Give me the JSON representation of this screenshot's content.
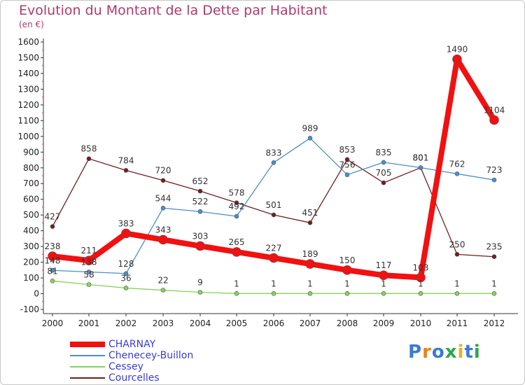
{
  "header": {
    "title": "Evolution du Montant de la Dette par Habitant",
    "subtitle": "(en €)"
  },
  "logo": {
    "letters": [
      "P",
      "r",
      "o",
      "x",
      "i",
      "t",
      "i"
    ],
    "colors": [
      "#3a7bd5",
      "#e8831a",
      "#3a7bd5",
      "#2aa84a",
      "#e8b21a",
      "#3a7bd5",
      "#2aa84a"
    ]
  },
  "chart_data": {
    "type": "line",
    "x": [
      2000,
      2001,
      2002,
      2003,
      2004,
      2005,
      2006,
      2007,
      2008,
      2009,
      2010,
      2011,
      2012
    ],
    "xticklabels": [
      "2000",
      "2001",
      "2002",
      "2003",
      "2004",
      "2005",
      "2006",
      "2007",
      "2008",
      "2009",
      "2010",
      "2011",
      "2012"
    ],
    "ylim": [
      -100,
      1600
    ],
    "yticks": [
      -100,
      0,
      100,
      200,
      300,
      400,
      500,
      600,
      700,
      800,
      900,
      1000,
      1100,
      1200,
      1300,
      1400,
      1500,
      1600
    ],
    "yticklabels": [
      "-100",
      "0",
      "100",
      "200",
      "300",
      "400",
      "500",
      "600",
      "700",
      "800",
      "900",
      "1000",
      "1100",
      "1200",
      "1300",
      "1400",
      "1500",
      "1600"
    ],
    "grid": false,
    "legend": "bottom-left",
    "series": [
      {
        "name": "Courcelles",
        "color": "#6e1f24",
        "values": [
          427,
          858,
          784,
          720,
          652,
          578,
          501,
          451,
          853,
          705,
          801,
          250,
          235
        ],
        "labels": [
          "427",
          "858",
          "784",
          "720",
          "652",
          "578",
          "501",
          "451",
          "853",
          "705",
          "801",
          "250",
          "235"
        ]
      },
      {
        "name": "Chenecey-Buillon",
        "color": "#4a90c9",
        "values": [
          148,
          138,
          128,
          544,
          522,
          492,
          833,
          989,
          756,
          835,
          801,
          762,
          723
        ],
        "labels": [
          "148",
          "138",
          "128",
          "544",
          "522",
          "492",
          "833",
          "989",
          "756",
          "835",
          "801",
          "762",
          "723"
        ]
      },
      {
        "name": "Cessey",
        "color": "#86d35a",
        "values": [
          81,
          58,
          36,
          22,
          9,
          1,
          1,
          1,
          1,
          1,
          1,
          1,
          1
        ],
        "labels": [
          "81",
          "58",
          "36",
          "22",
          "9",
          "1",
          "1",
          "1",
          "1",
          "1",
          "1",
          "1",
          "1"
        ]
      },
      {
        "name": "CHARNAY",
        "color": "#f21010",
        "values": [
          238,
          211,
          383,
          343,
          303,
          265,
          227,
          189,
          150,
          117,
          103,
          1490,
          1104
        ],
        "labels": [
          "238",
          "211",
          "383",
          "343",
          "303",
          "265",
          "227",
          "189",
          "150",
          "117",
          "103",
          "1490",
          "1104"
        ]
      }
    ],
    "legend_order": [
      "CHARNAY",
      "Chenecey-Buillon",
      "Cessey",
      "Courcelles"
    ]
  }
}
